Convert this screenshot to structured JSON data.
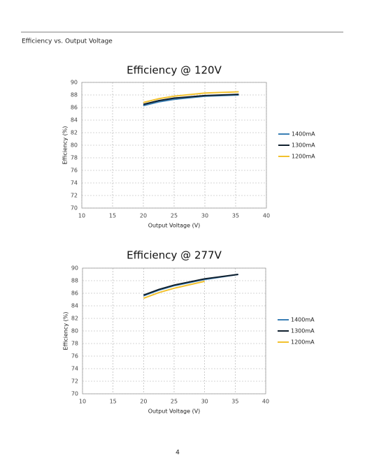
{
  "section_title": "Efficiency vs. Output Voltage",
  "page_number": "4",
  "chart_data": [
    {
      "type": "line",
      "title": "Efficiency @ 120V",
      "x_label": "Output Voltage (V)",
      "y_label": "Efficiency (%)",
      "x": [
        20,
        22.5,
        25,
        30,
        35.5
      ],
      "series": [
        {
          "name": "1400mA",
          "color": "#3a7fb5",
          "values": [
            86.3,
            86.9,
            87.3,
            87.8,
            88.0
          ]
        },
        {
          "name": "1300mA",
          "color": "#10202e",
          "values": [
            86.5,
            87.1,
            87.5,
            87.9,
            88.1
          ]
        },
        {
          "name": "1200mA",
          "color": "#f2c12e",
          "values": [
            86.8,
            87.4,
            87.8,
            88.3,
            88.5
          ]
        }
      ],
      "xlim": [
        10,
        40
      ],
      "xticks": [
        10,
        15,
        20,
        25,
        30,
        35,
        40
      ],
      "ylim": [
        70,
        90
      ],
      "yticks": [
        70,
        72,
        74,
        76,
        78,
        80,
        82,
        84,
        86,
        88,
        90
      ],
      "grid": true,
      "legend": "right"
    },
    {
      "type": "line",
      "title": "Efficiency @ 277V",
      "x_label": "Output Voltage (V)",
      "y_label": "Efficiency (%)",
      "x": [
        20,
        22.5,
        25,
        30,
        35.5
      ],
      "series": [
        {
          "name": "1400mA",
          "color": "#3a7fb5",
          "values": [
            85.6,
            86.5,
            87.2,
            88.2,
            89.0
          ]
        },
        {
          "name": "1300mA",
          "color": "#10202e",
          "values": [
            85.7,
            86.6,
            87.3,
            88.3,
            89.0
          ]
        },
        {
          "name": "1200mA",
          "color": "#f2c12e",
          "values": [
            85.2,
            86.1,
            86.8,
            87.9,
            null
          ]
        }
      ],
      "xlim": [
        10,
        40
      ],
      "xticks": [
        10,
        15,
        20,
        25,
        30,
        35,
        40
      ],
      "ylim": [
        70,
        90
      ],
      "yticks": [
        70,
        72,
        74,
        76,
        78,
        80,
        82,
        84,
        86,
        88,
        90
      ],
      "grid": true,
      "legend": "right"
    }
  ]
}
